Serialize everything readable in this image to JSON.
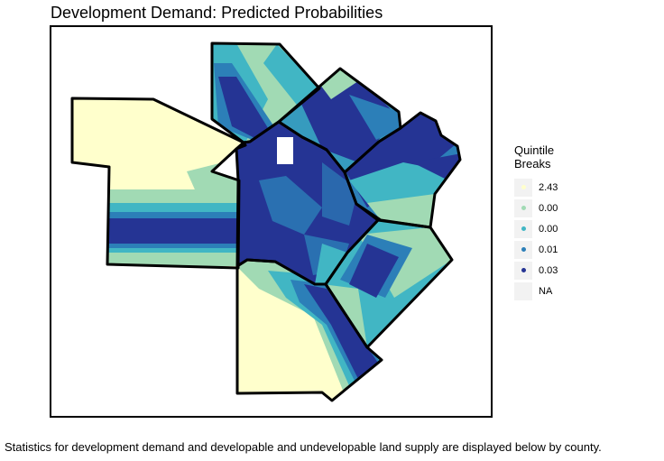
{
  "title": "Development Demand: Predicted Probabilities",
  "legend": {
    "title_line1": "Quintile",
    "title_line2": "Breaks",
    "items": [
      {
        "label": "2.43",
        "color": "#ffffcc"
      },
      {
        "label": "0.00",
        "color": "#a1dab4"
      },
      {
        "label": "0.00",
        "color": "#41b6c4"
      },
      {
        "label": "0.01",
        "color": "#2c7fb8"
      },
      {
        "label": "0.03",
        "color": "#253494"
      },
      {
        "label": "NA",
        "color": ""
      }
    ]
  },
  "caption": "Statistics for development demand and developable and undevelopable land supply are displayed below by county.",
  "colors": {
    "q1": "#ffffcc",
    "q2": "#a1dab4",
    "q3": "#41b6c4",
    "q4": "#2c7fb8",
    "q5": "#253494",
    "boundary": "#000000"
  }
}
